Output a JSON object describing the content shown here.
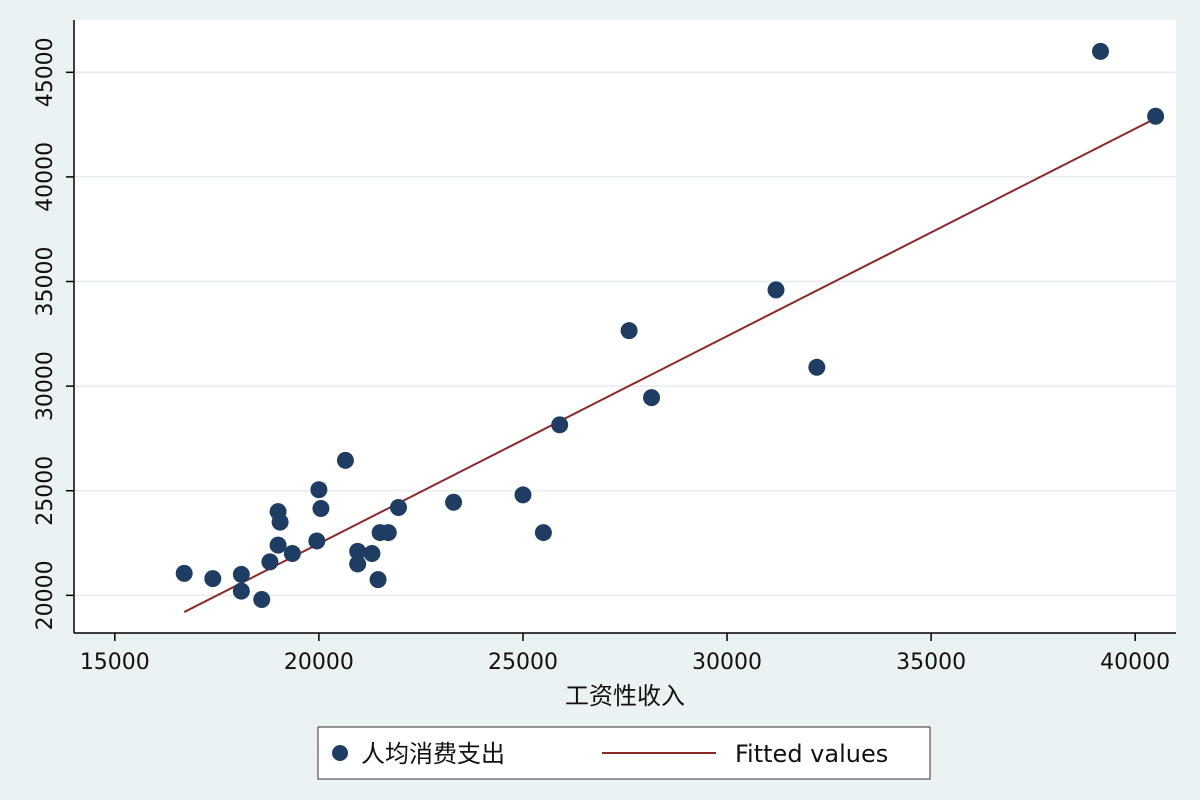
{
  "chart_data": {
    "type": "scatter",
    "title": "",
    "xlabel": "工资性收入",
    "ylabel": "",
    "xlim": [
      14000,
      41000
    ],
    "ylim": [
      18200,
      47500
    ],
    "xticks": [
      15000,
      20000,
      25000,
      30000,
      35000,
      40000
    ],
    "yticks": [
      20000,
      25000,
      30000,
      35000,
      40000,
      45000
    ],
    "grid": "horizontal",
    "legend_position": "bottom",
    "colors": {
      "points": "#1f3d63",
      "fit_line": "#8b2a2a",
      "plot_bg": "#ffffff",
      "outer_bg": "#eaf2f3",
      "grid": "#e6ecee"
    },
    "series": [
      {
        "name": "人均消费支出",
        "kind": "scatter",
        "points": [
          [
            16700,
            21050
          ],
          [
            17400,
            20800
          ],
          [
            18100,
            21000
          ],
          [
            18100,
            20200
          ],
          [
            18600,
            19800
          ],
          [
            18800,
            21600
          ],
          [
            19000,
            22400
          ],
          [
            19000,
            24000
          ],
          [
            19050,
            23500
          ],
          [
            19350,
            22000
          ],
          [
            19950,
            22600
          ],
          [
            20000,
            25050
          ],
          [
            20050,
            24150
          ],
          [
            20650,
            26450
          ],
          [
            20950,
            22100
          ],
          [
            20950,
            21500
          ],
          [
            21300,
            22000
          ],
          [
            21450,
            20750
          ],
          [
            21500,
            23000
          ],
          [
            21700,
            23000
          ],
          [
            21950,
            24200
          ],
          [
            23300,
            24450
          ],
          [
            25000,
            24800
          ],
          [
            25500,
            23000
          ],
          [
            25900,
            28150
          ],
          [
            27600,
            32650
          ],
          [
            28150,
            29450
          ],
          [
            31200,
            34600
          ],
          [
            32200,
            30900
          ],
          [
            39150,
            46000
          ],
          [
            40500,
            42900
          ]
        ]
      },
      {
        "name": "Fitted values",
        "kind": "line",
        "points": [
          [
            16700,
            19200
          ],
          [
            40500,
            42800
          ]
        ]
      }
    ]
  }
}
